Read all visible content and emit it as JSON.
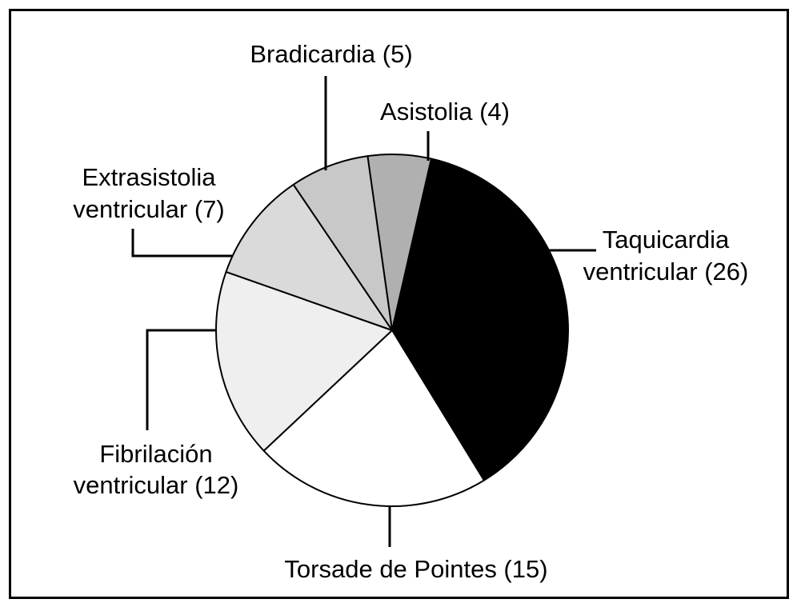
{
  "chart_data": {
    "type": "pie",
    "title": "",
    "slices": [
      {
        "name": "Asistolia",
        "value": 4,
        "label_line1": "Asistolia (4)",
        "label_line2": "",
        "color": "#b0b0b0"
      },
      {
        "name": "Taquicardia ventricular",
        "value": 26,
        "label_line1": "Taquicardia",
        "label_line2": "ventricular (26)",
        "color": "#000000"
      },
      {
        "name": "Torsade de Pointes",
        "value": 15,
        "label_line1": "Torsade de Pointes (15)",
        "label_line2": "",
        "color": "#ffffff"
      },
      {
        "name": "Fibrilación ventricular",
        "value": 12,
        "label_line1": "Fibrilación",
        "label_line2": "ventricular (12)",
        "color": "#efefef"
      },
      {
        "name": "Extrasistolia ventricular",
        "value": 7,
        "label_line1": "Extrasistolia",
        "label_line2": "ventricular (7)",
        "color": "#dadada"
      },
      {
        "name": "Bradicardia",
        "value": 5,
        "label_line1": "Bradicardia (5)",
        "label_line2": "",
        "color": "#c8c8c8"
      }
    ]
  }
}
